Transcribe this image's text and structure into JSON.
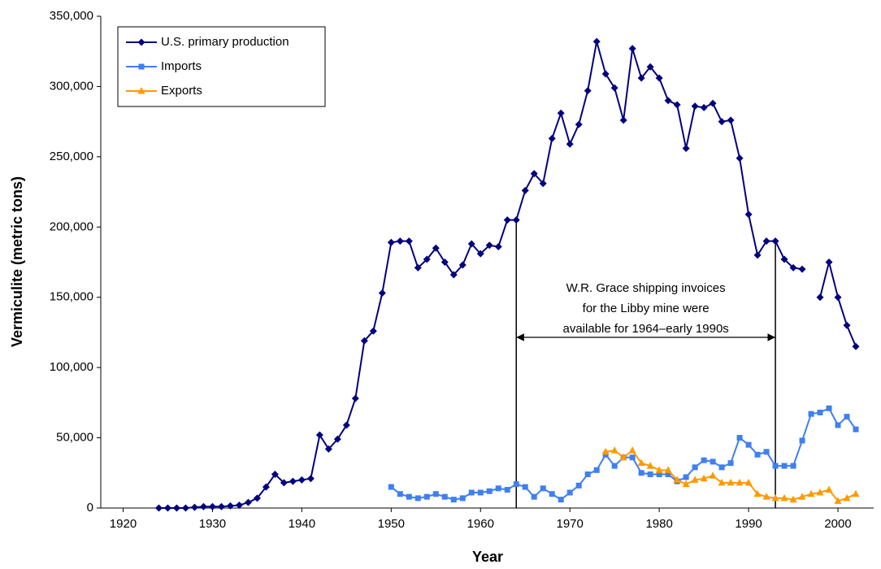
{
  "chart_data": {
    "type": "line",
    "x_label": "Year",
    "y_label": "Vermiculite (metric tons)",
    "x": [
      1924,
      1925,
      1926,
      1927,
      1928,
      1929,
      1930,
      1931,
      1932,
      1933,
      1934,
      1935,
      1936,
      1937,
      1938,
      1939,
      1940,
      1941,
      1942,
      1943,
      1944,
      1945,
      1946,
      1947,
      1948,
      1949,
      1950,
      1951,
      1952,
      1953,
      1954,
      1955,
      1956,
      1957,
      1958,
      1959,
      1960,
      1961,
      1962,
      1963,
      1964,
      1965,
      1966,
      1967,
      1968,
      1969,
      1970,
      1971,
      1972,
      1973,
      1974,
      1975,
      1976,
      1977,
      1978,
      1979,
      1980,
      1981,
      1982,
      1983,
      1984,
      1985,
      1986,
      1987,
      1988,
      1989,
      1990,
      1991,
      1992,
      1993,
      1994,
      1995,
      1996,
      1997,
      1998,
      1999,
      2000,
      2001,
      2002
    ],
    "series": [
      {
        "name": "U.S. primary production",
        "color": "#000080",
        "marker": "diamond",
        "values": [
          0,
          0,
          0,
          0,
          500,
          1000,
          1000,
          1000,
          1500,
          2000,
          4000,
          7000,
          15000,
          24000,
          18000,
          19000,
          20000,
          21000,
          52000,
          42000,
          49000,
          59000,
          78000,
          119000,
          126000,
          153000,
          189000,
          190000,
          190000,
          171000,
          177000,
          185000,
          175000,
          166000,
          173000,
          188000,
          181000,
          187000,
          186000,
          205000,
          205000,
          226000,
          238000,
          231000,
          263000,
          281000,
          259000,
          273000,
          297000,
          332000,
          309000,
          299000,
          276000,
          327000,
          306000,
          314000,
          306000,
          290000,
          287000,
          256000,
          286000,
          285000,
          288000,
          275000,
          276000,
          249000,
          209000,
          180000,
          190000,
          190000,
          177000,
          171000,
          170000,
          null,
          150000,
          175000,
          150000,
          130000,
          115000
        ]
      },
      {
        "name": "Imports",
        "color": "#3f7ff0",
        "marker": "square",
        "values": [
          null,
          null,
          null,
          null,
          null,
          null,
          null,
          null,
          null,
          null,
          null,
          null,
          null,
          null,
          null,
          null,
          null,
          null,
          null,
          null,
          null,
          null,
          null,
          null,
          null,
          null,
          15000,
          10000,
          8000,
          7000,
          8000,
          10000,
          8000,
          6000,
          7000,
          11000,
          11000,
          12000,
          14000,
          13000,
          17000,
          15000,
          8000,
          14000,
          10000,
          6000,
          11000,
          16000,
          24000,
          27000,
          38000,
          30000,
          36000,
          36000,
          25000,
          24000,
          24000,
          24000,
          19000,
          22000,
          29000,
          34000,
          33000,
          29000,
          32000,
          50000,
          45000,
          38000,
          40000,
          30000,
          30000,
          30000,
          48000,
          67000,
          68000,
          71000,
          59000,
          65000,
          56000
        ]
      },
      {
        "name": "Exports",
        "color": "#ff9900",
        "marker": "triangle",
        "values": [
          null,
          null,
          null,
          null,
          null,
          null,
          null,
          null,
          null,
          null,
          null,
          null,
          null,
          null,
          null,
          null,
          null,
          null,
          null,
          null,
          null,
          null,
          null,
          null,
          null,
          null,
          null,
          null,
          null,
          null,
          null,
          null,
          null,
          null,
          null,
          null,
          null,
          null,
          null,
          null,
          null,
          null,
          null,
          null,
          null,
          null,
          null,
          null,
          null,
          null,
          40000,
          41000,
          36000,
          41000,
          32000,
          30000,
          27000,
          27000,
          20000,
          17000,
          20000,
          21000,
          23000,
          18000,
          18000,
          18000,
          18000,
          10000,
          8000,
          7000,
          7000,
          6000,
          8000,
          10000,
          11000,
          13000,
          5000,
          7000,
          10000
        ]
      }
    ],
    "xlim": [
      1917.5,
      2004
    ],
    "xticks": [
      1920,
      1930,
      1940,
      1950,
      1960,
      1970,
      1980,
      1990,
      2000
    ],
    "ylim": [
      0,
      350000
    ],
    "yticks": [
      0,
      {
        "value": 50000,
        "label": "50,000"
      },
      {
        "value": 100000,
        "label": "100,000"
      },
      {
        "value": 150000,
        "label": "150,000"
      },
      {
        "value": 200000,
        "label": "200,000"
      },
      {
        "value": 250000,
        "label": "250,000"
      },
      {
        "value": 300000,
        "label": "300,000"
      },
      {
        "value": 350000,
        "label": "350,000"
      }
    ],
    "legend": "top-left",
    "annotation": {
      "lines": [
        "W.R. Grace shipping invoices",
        "for the Libby mine were",
        "available for 1964–early 1990s"
      ],
      "span": [
        1964,
        1993
      ]
    }
  }
}
